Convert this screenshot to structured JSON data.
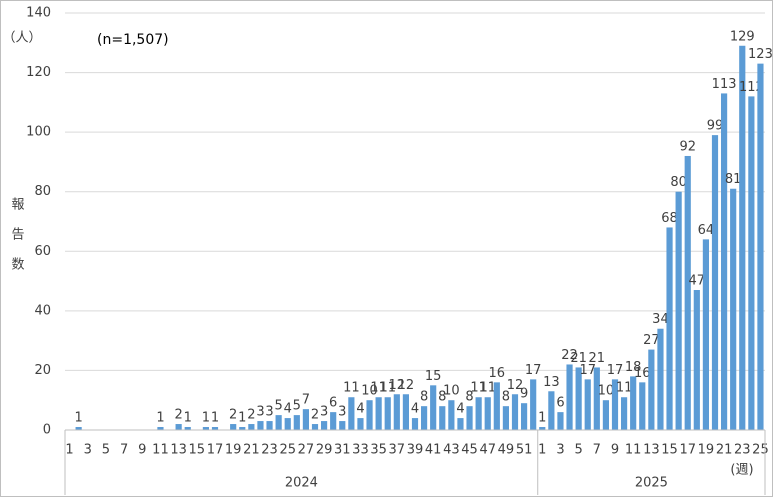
{
  "chart_data": {
    "type": "bar",
    "color": "#5b9bd5",
    "grid": true,
    "y_unit": "（人）",
    "ylabel": [
      "報",
      "告",
      "数"
    ],
    "x_unit": "(週)",
    "annotation": "(n=1,507)",
    "ylim": [
      0,
      140
    ],
    "yticks": [
      0,
      20,
      40,
      60,
      80,
      100,
      120,
      140
    ],
    "groups": [
      {
        "name": "2024",
        "categories": [
          "1",
          null,
          "3",
          null,
          "5",
          null,
          "7",
          null,
          "9",
          null,
          "11",
          null,
          "13",
          null,
          "15",
          null,
          "17",
          null,
          "19",
          null,
          "21",
          null,
          "23",
          null,
          "25",
          null,
          "27",
          null,
          "29",
          null,
          "31",
          null,
          "33",
          null,
          "35",
          null,
          "37",
          null,
          "39",
          null,
          "41",
          null,
          "43",
          null,
          "45",
          null,
          "47",
          null,
          "49",
          null,
          "51",
          null
        ],
        "values": [
          0,
          1,
          0,
          0,
          0,
          0,
          0,
          0,
          0,
          0,
          1,
          0,
          2,
          1,
          0,
          1,
          1,
          0,
          2,
          1,
          2,
          3,
          3,
          5,
          4,
          5,
          7,
          2,
          3,
          6,
          3,
          11,
          4,
          10,
          11,
          11,
          12,
          12,
          4,
          8,
          15,
          8,
          10,
          4,
          8,
          11,
          11,
          16,
          8,
          12,
          9,
          17
        ]
      },
      {
        "name": "2025",
        "categories": [
          "1",
          null,
          "3",
          null,
          "5",
          null,
          "7",
          null,
          "9",
          null,
          "11",
          null,
          "13",
          null,
          "15",
          null,
          "17",
          null,
          "19",
          null,
          "21",
          null,
          "23",
          null,
          "25"
        ],
        "values": [
          1,
          13,
          6,
          22,
          21,
          17,
          21,
          10,
          17,
          11,
          18,
          16,
          27,
          34,
          68,
          80,
          92,
          47,
          64,
          99,
          113,
          81,
          129,
          112,
          123
        ]
      }
    ]
  }
}
